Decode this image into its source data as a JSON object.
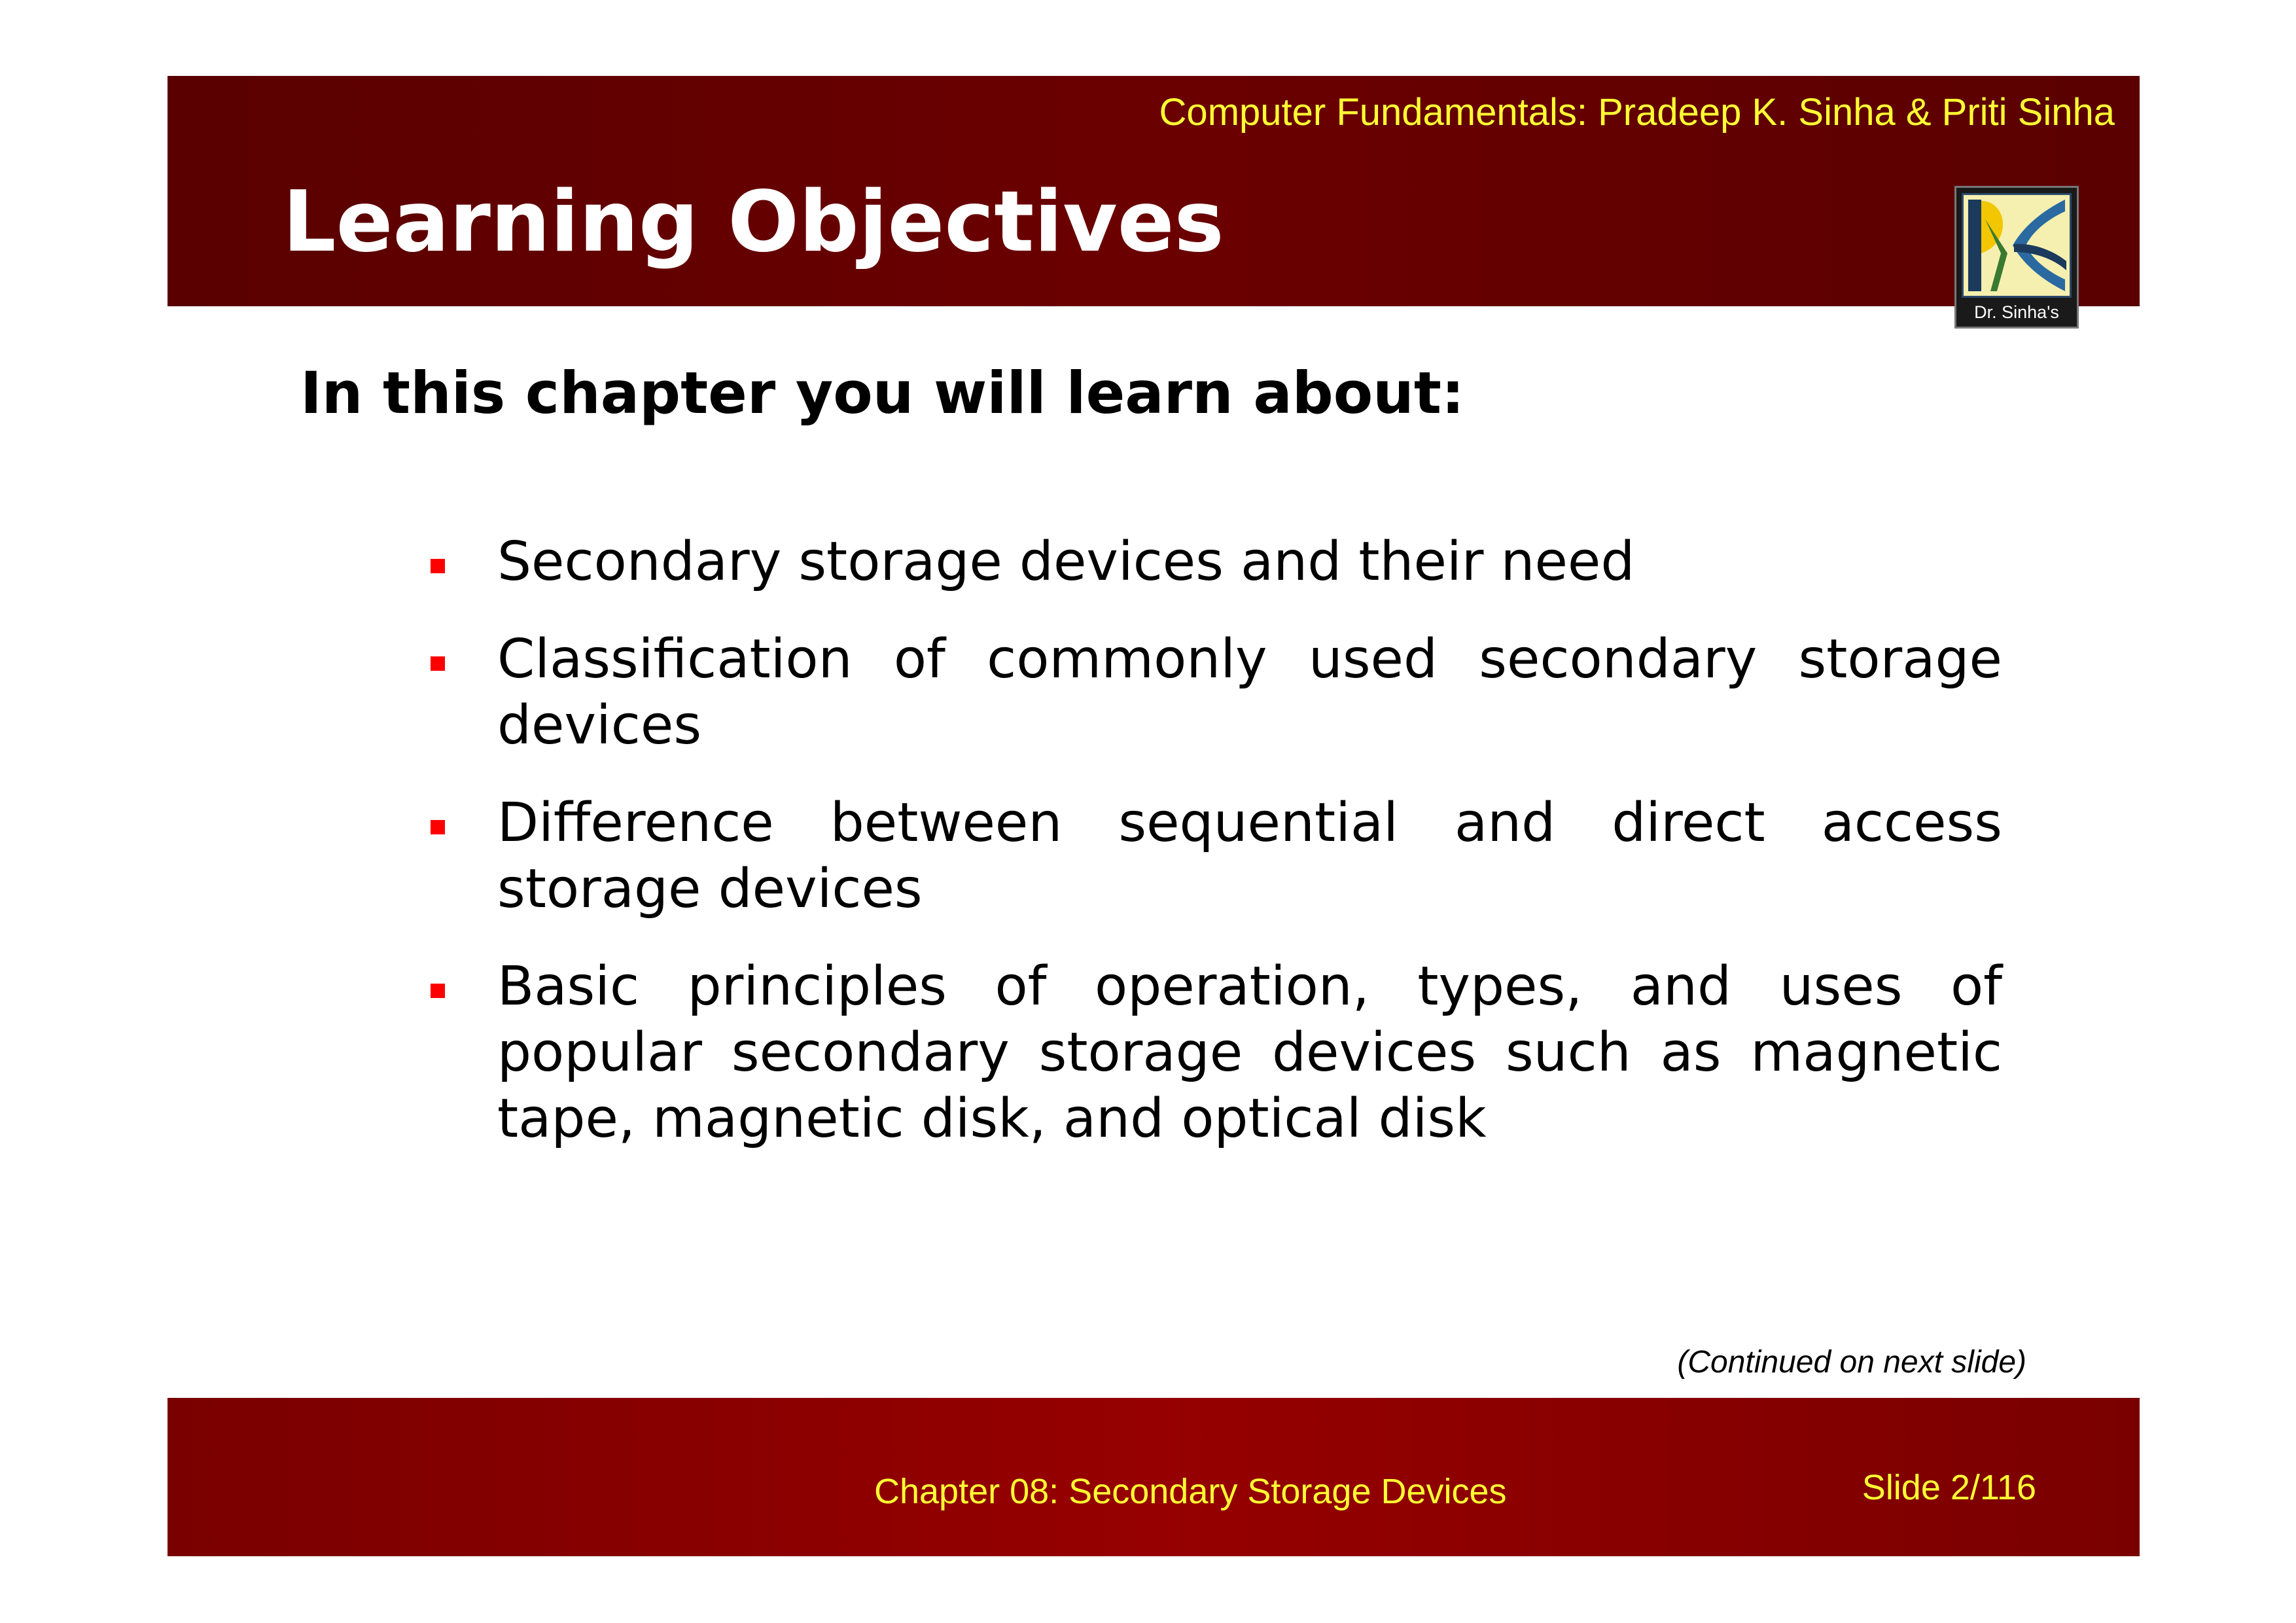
{
  "header": {
    "credit": "Computer Fundamentals: Pradeep K. Sinha & Priti Sinha",
    "title": "Learning Objectives",
    "background_color": "#650000",
    "credit_color": "#ffff33"
  },
  "logo": {
    "label": "Dr. Sinha's",
    "icon": "dr-sinhas-logo-icon"
  },
  "main": {
    "intro": "In this chapter you will learn about:",
    "bullet_color": "#ff0000",
    "objectives": [
      {
        "text": "Secondary storage devices and their need"
      },
      {
        "text": "Classification of commonly used secondary storage devices"
      },
      {
        "text": "Difference between sequential and direct access storage devices"
      },
      {
        "text": "Basic principles of operation, types, and uses of popular secondary storage devices such as magnetic tape, magnetic disk, and optical disk"
      }
    ],
    "continued_note": "(Continued on next slide)"
  },
  "footer": {
    "chapter": "Chapter 08: Secondary Storage Devices",
    "slide": "Slide 2/116",
    "background_color": "#8b0000"
  }
}
